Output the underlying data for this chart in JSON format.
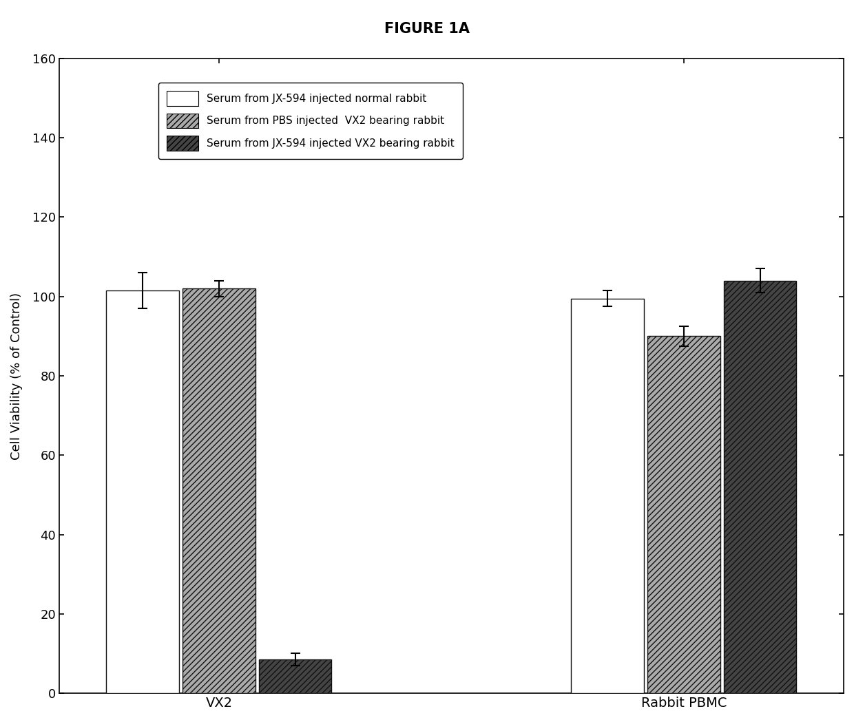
{
  "title": "FIGURE 1A",
  "ylabel": "Cell Viability (% of Control)",
  "groups": [
    "VX2",
    "Rabbit PBMC"
  ],
  "series_labels": [
    "Serum from JX-594 injected normal rabbit",
    "Serum from PBS injected  VX2 bearing rabbit",
    "Serum from JX-594 injected VX2 bearing rabbit"
  ],
  "values": {
    "VX2": [
      101.5,
      102.0,
      8.5
    ],
    "Rabbit PBMC": [
      99.5,
      90.0,
      104.0
    ]
  },
  "errors": {
    "VX2": [
      4.5,
      2.0,
      1.5
    ],
    "Rabbit PBMC": [
      2.0,
      2.5,
      3.0
    ]
  },
  "bar_facecolors": [
    "#ffffff",
    "#aaaaaa",
    "#444444"
  ],
  "bar_hatches": [
    "",
    "////",
    "////"
  ],
  "bar_edgecolors": [
    "#111111",
    "#111111",
    "#111111"
  ],
  "ylim": [
    0,
    160
  ],
  "yticks": [
    0,
    20,
    40,
    60,
    80,
    100,
    120,
    140,
    160
  ],
  "title_fontsize": 15,
  "label_fontsize": 13,
  "tick_fontsize": 13,
  "legend_fontsize": 11,
  "bar_width": 0.25,
  "group_centers": [
    1.0,
    2.6
  ],
  "background_color": "#ffffff"
}
